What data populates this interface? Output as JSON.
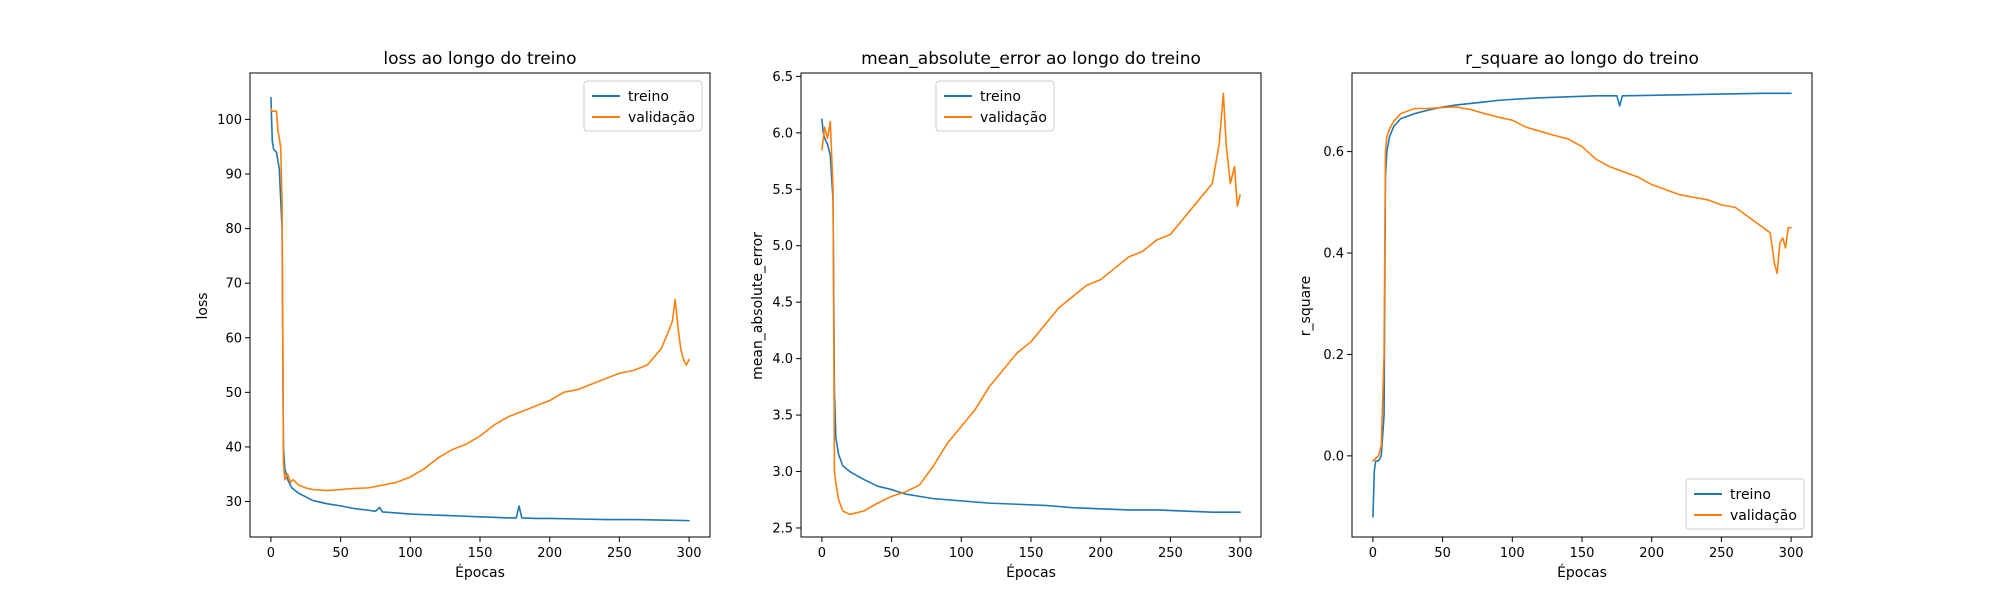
{
  "chart_data": [
    {
      "type": "line",
      "title": "loss ao longo do treino",
      "xlabel": "Épocas",
      "ylabel": "loss",
      "xlim": [
        -15,
        315
      ],
      "ylim": [
        23.5,
        108.5
      ],
      "xticks": [
        0,
        50,
        100,
        150,
        200,
        250,
        300
      ],
      "yticks": [
        30,
        40,
        50,
        60,
        70,
        80,
        90,
        100
      ],
      "legend_position": "top-right",
      "grid": false,
      "series": [
        {
          "name": "treino",
          "color": "#1f77b4",
          "points": [
            [
              0,
              104
            ],
            [
              1,
              96
            ],
            [
              2,
              94.5
            ],
            [
              4,
              94
            ],
            [
              6,
              91
            ],
            [
              8,
              80
            ],
            [
              9,
              40
            ],
            [
              10,
              36
            ],
            [
              12,
              34
            ],
            [
              15,
              32.5
            ],
            [
              20,
              31.5
            ],
            [
              30,
              30.2
            ],
            [
              40,
              29.6
            ],
            [
              50,
              29.2
            ],
            [
              60,
              28.7
            ],
            [
              70,
              28.4
            ],
            [
              75,
              28.2
            ],
            [
              78,
              28.9
            ],
            [
              80,
              28.1
            ],
            [
              90,
              27.9
            ],
            [
              100,
              27.7
            ],
            [
              110,
              27.6
            ],
            [
              120,
              27.5
            ],
            [
              130,
              27.4
            ],
            [
              140,
              27.3
            ],
            [
              150,
              27.2
            ],
            [
              160,
              27.1
            ],
            [
              170,
              27
            ],
            [
              176,
              27
            ],
            [
              178,
              29.2
            ],
            [
              180,
              27
            ],
            [
              190,
              26.9
            ],
            [
              200,
              26.9
            ],
            [
              220,
              26.8
            ],
            [
              240,
              26.7
            ],
            [
              260,
              26.7
            ],
            [
              280,
              26.6
            ],
            [
              300,
              26.5
            ]
          ]
        },
        {
          "name": "validação",
          "color": "#ff7f0e",
          "points": [
            [
              0,
              102
            ],
            [
              1,
              101.5
            ],
            [
              2,
              101.5
            ],
            [
              4,
              101.5
            ],
            [
              5,
              98
            ],
            [
              7,
              95
            ],
            [
              8,
              85
            ],
            [
              9,
              37
            ],
            [
              10,
              34
            ],
            [
              12,
              35
            ],
            [
              14,
              33.5
            ],
            [
              16,
              34
            ],
            [
              20,
              33
            ],
            [
              25,
              32.5
            ],
            [
              30,
              32.2
            ],
            [
              40,
              32
            ],
            [
              50,
              32.2
            ],
            [
              60,
              32.4
            ],
            [
              70,
              32.5
            ],
            [
              80,
              33
            ],
            [
              90,
              33.5
            ],
            [
              100,
              34.5
            ],
            [
              110,
              36
            ],
            [
              120,
              38
            ],
            [
              130,
              39.5
            ],
            [
              140,
              40.5
            ],
            [
              150,
              42
            ],
            [
              160,
              44
            ],
            [
              170,
              45.5
            ],
            [
              180,
              46.5
            ],
            [
              190,
              47.5
            ],
            [
              200,
              48.5
            ],
            [
              210,
              50
            ],
            [
              220,
              50.5
            ],
            [
              230,
              51.5
            ],
            [
              240,
              52.5
            ],
            [
              250,
              53.5
            ],
            [
              260,
              54
            ],
            [
              270,
              55
            ],
            [
              280,
              58
            ],
            [
              285,
              61
            ],
            [
              288,
              63
            ],
            [
              290,
              67
            ],
            [
              292,
              62
            ],
            [
              294,
              58
            ],
            [
              296,
              56
            ],
            [
              298,
              55
            ],
            [
              300,
              56
            ]
          ]
        }
      ]
    },
    {
      "type": "line",
      "title": "mean_absolute_error ao longo do treino",
      "xlabel": "Épocas",
      "ylabel": "mean_absolute_error",
      "xlim": [
        -15,
        315
      ],
      "ylim": [
        2.42,
        6.53
      ],
      "xticks": [
        0,
        50,
        100,
        150,
        200,
        250,
        300
      ],
      "yticks": [
        2.5,
        3.0,
        3.5,
        4.0,
        4.5,
        5.0,
        5.5,
        6.0,
        6.5
      ],
      "legend_position": "top-center",
      "grid": false,
      "series": [
        {
          "name": "treino",
          "color": "#1f77b4",
          "points": [
            [
              0,
              6.12
            ],
            [
              1,
              6.0
            ],
            [
              2,
              5.95
            ],
            [
              4,
              5.9
            ],
            [
              6,
              5.8
            ],
            [
              8,
              5.4
            ],
            [
              9,
              3.7
            ],
            [
              10,
              3.3
            ],
            [
              12,
              3.15
            ],
            [
              15,
              3.05
            ],
            [
              20,
              3.0
            ],
            [
              30,
              2.93
            ],
            [
              40,
              2.87
            ],
            [
              50,
              2.84
            ],
            [
              60,
              2.8
            ],
            [
              70,
              2.78
            ],
            [
              80,
              2.76
            ],
            [
              90,
              2.75
            ],
            [
              100,
              2.74
            ],
            [
              120,
              2.72
            ],
            [
              140,
              2.71
            ],
            [
              160,
              2.7
            ],
            [
              180,
              2.68
            ],
            [
              200,
              2.67
            ],
            [
              220,
              2.66
            ],
            [
              240,
              2.66
            ],
            [
              260,
              2.65
            ],
            [
              280,
              2.64
            ],
            [
              300,
              2.64
            ]
          ]
        },
        {
          "name": "validação",
          "color": "#ff7f0e",
          "points": [
            [
              0,
              5.85
            ],
            [
              2,
              6.05
            ],
            [
              4,
              5.95
            ],
            [
              6,
              6.1
            ],
            [
              8,
              5.5
            ],
            [
              9,
              3.0
            ],
            [
              10,
              2.9
            ],
            [
              12,
              2.75
            ],
            [
              15,
              2.65
            ],
            [
              20,
              2.62
            ],
            [
              30,
              2.65
            ],
            [
              40,
              2.72
            ],
            [
              50,
              2.78
            ],
            [
              60,
              2.82
            ],
            [
              70,
              2.88
            ],
            [
              80,
              3.05
            ],
            [
              90,
              3.25
            ],
            [
              100,
              3.4
            ],
            [
              110,
              3.55
            ],
            [
              120,
              3.75
            ],
            [
              130,
              3.9
            ],
            [
              140,
              4.05
            ],
            [
              150,
              4.15
            ],
            [
              160,
              4.3
            ],
            [
              170,
              4.45
            ],
            [
              180,
              4.55
            ],
            [
              190,
              4.65
            ],
            [
              200,
              4.7
            ],
            [
              210,
              4.8
            ],
            [
              220,
              4.9
            ],
            [
              230,
              4.95
            ],
            [
              240,
              5.05
            ],
            [
              250,
              5.1
            ],
            [
              260,
              5.25
            ],
            [
              270,
              5.4
            ],
            [
              280,
              5.55
            ],
            [
              285,
              5.9
            ],
            [
              288,
              6.35
            ],
            [
              290,
              5.9
            ],
            [
              293,
              5.55
            ],
            [
              296,
              5.7
            ],
            [
              298,
              5.35
            ],
            [
              300,
              5.45
            ]
          ]
        }
      ]
    },
    {
      "type": "line",
      "title": "r_square ao longo do treino",
      "xlabel": "Épocas",
      "ylabel": "r_square",
      "xlim": [
        -15,
        315
      ],
      "ylim": [
        -0.16,
        0.755
      ],
      "xticks": [
        0,
        50,
        100,
        150,
        200,
        250,
        300
      ],
      "yticks": [
        0.0,
        0.2,
        0.4,
        0.6
      ],
      "legend_position": "bottom-right",
      "grid": false,
      "series": [
        {
          "name": "treino",
          "color": "#1f77b4",
          "points": [
            [
              0,
              -0.12
            ],
            [
              1,
              -0.03
            ],
            [
              2,
              -0.01
            ],
            [
              4,
              -0.01
            ],
            [
              6,
              0.0
            ],
            [
              8,
              0.08
            ],
            [
              9,
              0.55
            ],
            [
              10,
              0.6
            ],
            [
              12,
              0.63
            ],
            [
              15,
              0.65
            ],
            [
              20,
              0.665
            ],
            [
              30,
              0.675
            ],
            [
              40,
              0.682
            ],
            [
              50,
              0.688
            ],
            [
              60,
              0.692
            ],
            [
              70,
              0.695
            ],
            [
              80,
              0.698
            ],
            [
              90,
              0.701
            ],
            [
              100,
              0.703
            ],
            [
              120,
              0.706
            ],
            [
              140,
              0.708
            ],
            [
              160,
              0.71
            ],
            [
              175,
              0.71
            ],
            [
              177,
              0.69
            ],
            [
              179,
              0.71
            ],
            [
              200,
              0.711
            ],
            [
              220,
              0.712
            ],
            [
              240,
              0.713
            ],
            [
              260,
              0.714
            ],
            [
              280,
              0.715
            ],
            [
              300,
              0.715
            ]
          ]
        },
        {
          "name": "validação",
          "color": "#ff7f0e",
          "points": [
            [
              0,
              -0.01
            ],
            [
              2,
              -0.005
            ],
            [
              4,
              0.0
            ],
            [
              6,
              0.02
            ],
            [
              8,
              0.2
            ],
            [
              9,
              0.6
            ],
            [
              10,
              0.63
            ],
            [
              12,
              0.645
            ],
            [
              15,
              0.66
            ],
            [
              20,
              0.675
            ],
            [
              30,
              0.685
            ],
            [
              40,
              0.685
            ],
            [
              50,
              0.687
            ],
            [
              60,
              0.688
            ],
            [
              70,
              0.683
            ],
            [
              80,
              0.675
            ],
            [
              90,
              0.668
            ],
            [
              100,
              0.662
            ],
            [
              110,
              0.648
            ],
            [
              120,
              0.64
            ],
            [
              130,
              0.632
            ],
            [
              140,
              0.625
            ],
            [
              150,
              0.61
            ],
            [
              160,
              0.585
            ],
            [
              170,
              0.57
            ],
            [
              180,
              0.56
            ],
            [
              190,
              0.55
            ],
            [
              200,
              0.535
            ],
            [
              210,
              0.525
            ],
            [
              220,
              0.515
            ],
            [
              230,
              0.51
            ],
            [
              240,
              0.505
            ],
            [
              250,
              0.495
            ],
            [
              260,
              0.49
            ],
            [
              270,
              0.47
            ],
            [
              280,
              0.45
            ],
            [
              285,
              0.44
            ],
            [
              288,
              0.38
            ],
            [
              290,
              0.36
            ],
            [
              292,
              0.42
            ],
            [
              294,
              0.43
            ],
            [
              296,
              0.41
            ],
            [
              298,
              0.45
            ],
            [
              300,
              0.45
            ]
          ]
        }
      ]
    }
  ]
}
